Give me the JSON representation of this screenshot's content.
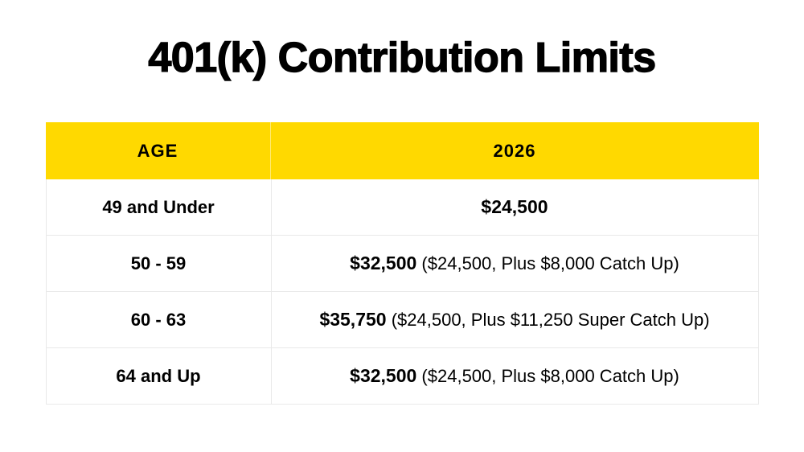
{
  "title": "401(k) Contribution Limits",
  "colors": {
    "background": "#FFFFFF",
    "header_bg": "#FFD900",
    "text": "#000000",
    "border": "#E9E9E9"
  },
  "table": {
    "header": {
      "age": "AGE",
      "year": "2026"
    },
    "rows": [
      {
        "age": "49 and Under",
        "limit": "$24,500",
        "detail": ""
      },
      {
        "age": "50 - 59",
        "limit": "$32,500",
        "detail": " ($24,500, Plus $8,000 Catch Up)"
      },
      {
        "age": "60 - 63",
        "limit": "$35,750",
        "detail": " ($24,500, Plus $11,250 Super Catch Up)"
      },
      {
        "age": "64 and Up",
        "limit": "$32,500",
        "detail": " ($24,500, Plus $8,000 Catch Up)"
      }
    ]
  },
  "chart_data": {
    "type": "table",
    "title": "401(k) Contribution Limits",
    "columns": [
      "AGE",
      "2026"
    ],
    "rows": [
      [
        "49 and Under",
        "$24,500"
      ],
      [
        "50 - 59",
        "$32,500 ($24,500, Plus $8,000 Catch Up)"
      ],
      [
        "60 - 63",
        "$35,750 ($24,500, Plus $11,250 Super Catch Up)"
      ],
      [
        "64 and Up",
        "$32,500 ($24,500, Plus $8,000 Catch Up)"
      ]
    ],
    "layout_hints": {
      "header_background": "#FFD900",
      "header_text_color": "#000000",
      "grid": "light-gray horizontal and vertical dividers",
      "bold_primary_amounts": true
    }
  }
}
